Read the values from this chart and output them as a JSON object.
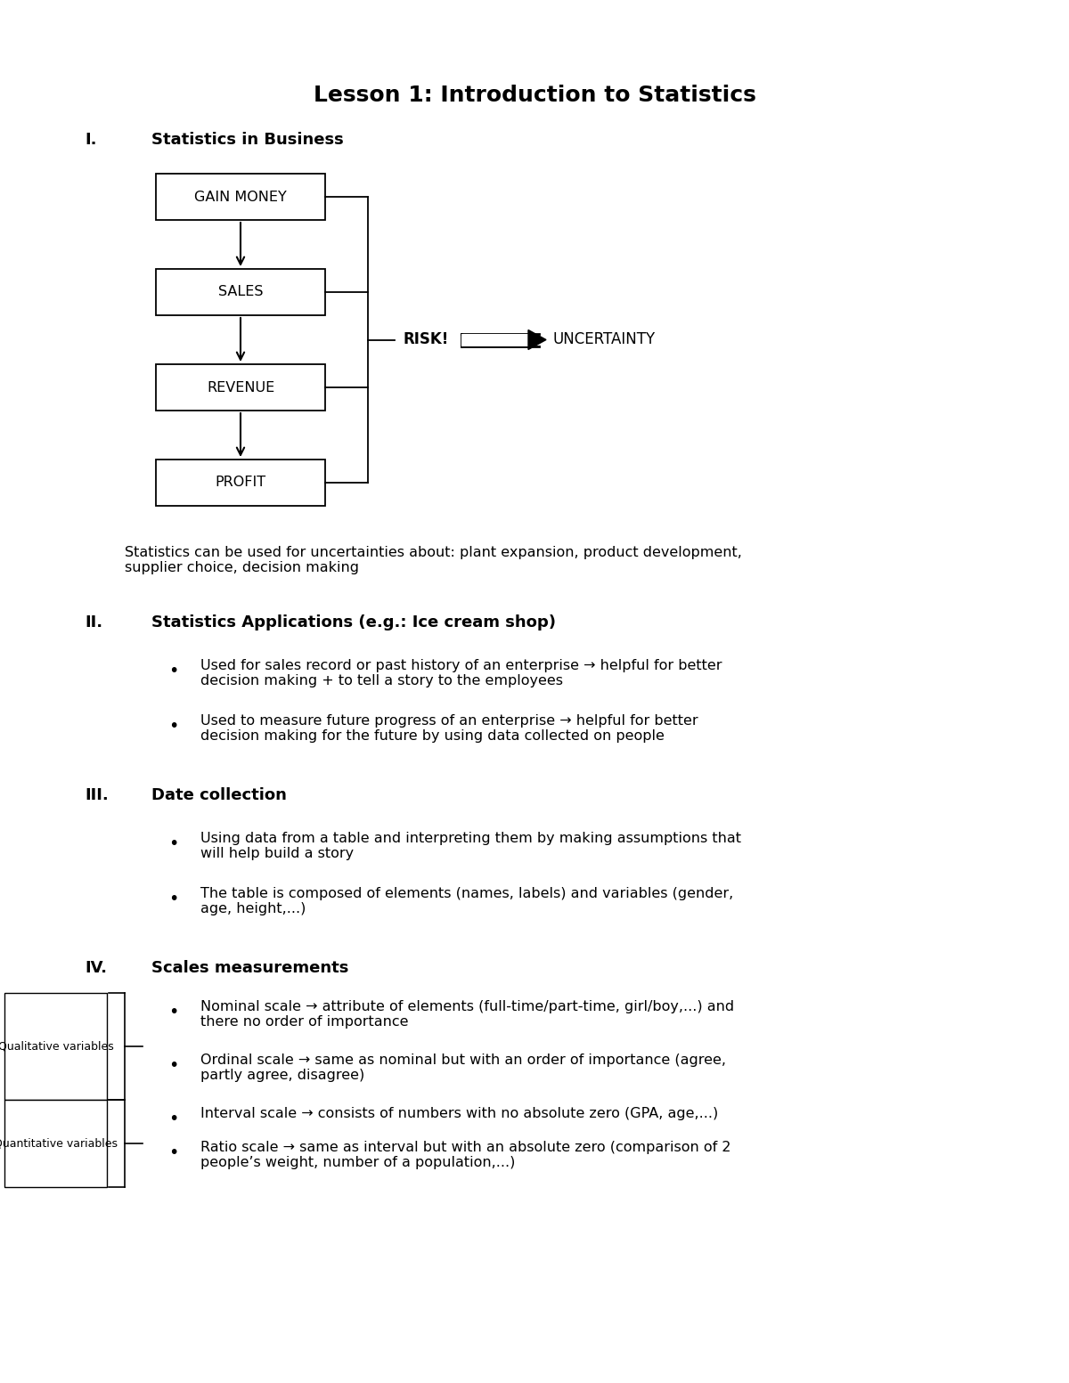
{
  "title": "Lesson 1: Introduction to Statistics",
  "bg_color": "#ffffff",
  "flowchart_boxes": [
    "GAIN MONEY",
    "SALES",
    "REVENUE",
    "PROFIT"
  ],
  "risk_label": "RISK!",
  "uncertainty_label": "UNCERTAINTY",
  "stats_note": "Statistics can be used for uncertainties about: plant expansion, product development,\nsupplier choice, decision making",
  "section_I_label": "I.",
  "section_I_title": "Statistics in Business",
  "section_II_label": "II.",
  "section_II_title": "Statistics Applications (e.g.: Ice cream shop)",
  "section_II_bullets": [
    "Used for sales record or past history of an enterprise → helpful for better\ndecision making + to tell a story to the employees",
    "Used to measure future progress of an enterprise → helpful for better\ndecision making for the future by using data collected on people"
  ],
  "section_III_label": "III.",
  "section_III_title": "Date collection",
  "section_III_bullets": [
    "Using data from a table and interpreting them by making assumptions that\nwill help build a story",
    "The table is composed of elements (names, labels) and variables (gender,\nage, height,...)"
  ],
  "section_IV_label": "IV.",
  "section_IV_title": "Scales measurements",
  "section_IV_bullets": [
    "Nominal scale → attribute of elements (full-time/part-time, girl/boy,...) and\nthere no order of importance",
    "Ordinal scale → same as nominal but with an order of importance (agree,\npartly agree, disagree)",
    "Interval scale → consists of numbers with no absolute zero (GPA, age,...)",
    "Ratio scale → same as interval but with an absolute zero (comparison of 2\npeople’s weight, number of a population,...)"
  ],
  "qualitative_label": "Qualitative variables",
  "quantitative_label": "Quantitative variables",
  "font_family": "DejaVu Sans"
}
